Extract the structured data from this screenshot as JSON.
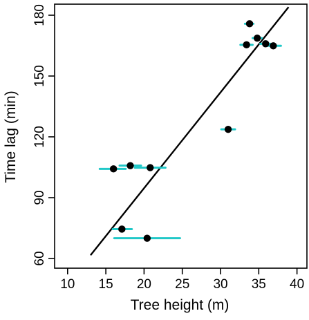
{
  "chart_data": {
    "type": "scatter",
    "xlabel": "Tree height (m)",
    "ylabel": "Time lag (min)",
    "xlim": [
      8.3,
      41.3
    ],
    "ylim": [
      60,
      180
    ],
    "xticks": [
      "10",
      "15",
      "20",
      "25",
      "30",
      "35",
      "40"
    ],
    "yticks": [
      "60",
      "90",
      "120",
      "150",
      "180"
    ],
    "grid": false,
    "points": [
      {
        "x": 20.4,
        "y": 70,
        "xerr": [
          16.1,
          24.7
        ]
      },
      {
        "x": 17.1,
        "y": 74.5,
        "xerr": [
          15.9,
          18.4
        ]
      },
      {
        "x": 16.0,
        "y": 104.2,
        "xerr": [
          14.2,
          17.6
        ]
      },
      {
        "x": 18.2,
        "y": 105.8,
        "xerr": [
          16.8,
          19.6
        ]
      },
      {
        "x": 20.8,
        "y": 104.8,
        "xerr": [
          18.8,
          22.8
        ]
      },
      {
        "x": 31.0,
        "y": 123.7,
        "xerr": [
          30.1,
          31.9
        ]
      },
      {
        "x": 33.8,
        "y": 175.8,
        "xerr": [
          33.2,
          34.3
        ]
      },
      {
        "x": 34.8,
        "y": 168.7,
        "xerr": [
          34.2,
          35.4
        ]
      },
      {
        "x": 33.4,
        "y": 165.4,
        "xerr": [
          32.6,
          34.2
        ]
      },
      {
        "x": 35.9,
        "y": 165.9,
        "xerr": [
          35.2,
          36.6
        ]
      },
      {
        "x": 36.9,
        "y": 164.9,
        "xerr": [
          36.1,
          37.9
        ]
      }
    ],
    "fit_line": {
      "x": [
        13.0,
        38.9
      ],
      "y": [
        61.6,
        184.0
      ]
    },
    "colors": {
      "errorbar": "#20c8c8",
      "point": "#000000",
      "line": "#000000"
    }
  }
}
